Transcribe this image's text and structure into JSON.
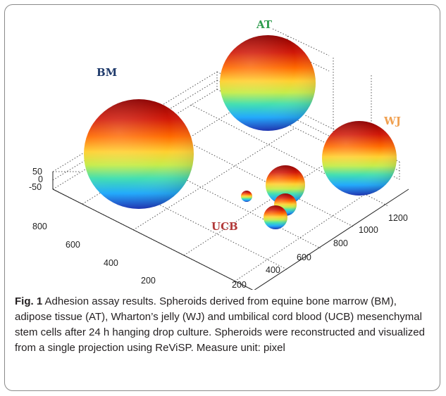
{
  "figure": {
    "caption": {
      "label": "Fig. 1",
      "text": "Adhesion assay results. Spheroids derived from equine bone marrow (BM), adipose tissue (AT), Wharton’s jelly (WJ) and umbilical cord blood (UCB) mesenchymal stem cells after 24 h hanging drop culture. Spheroids were reconstructed and visualized from a single projection using ReViSP. Measure unit: pixel"
    },
    "sphere_labels": [
      {
        "text": "BM",
        "color": "#1f3a6b"
      },
      {
        "text": "AT",
        "color": "#2e9c4d"
      },
      {
        "text": "WJ",
        "color": "#f0a050"
      },
      {
        "text": "UCB",
        "color": "#b23a3a"
      }
    ],
    "z_ticks": [
      "50",
      "0",
      "-50"
    ],
    "y_ticks": [
      "800",
      "600",
      "400",
      "200"
    ],
    "x_ticks": [
      "200",
      "400",
      "600",
      "800",
      "1000",
      "1200"
    ],
    "colormap": [
      "#8b0000",
      "#e02010",
      "#ff8a00",
      "#f5e23a",
      "#9be25a",
      "#35d3c0",
      "#1aa0ff",
      "#1432c8"
    ]
  }
}
